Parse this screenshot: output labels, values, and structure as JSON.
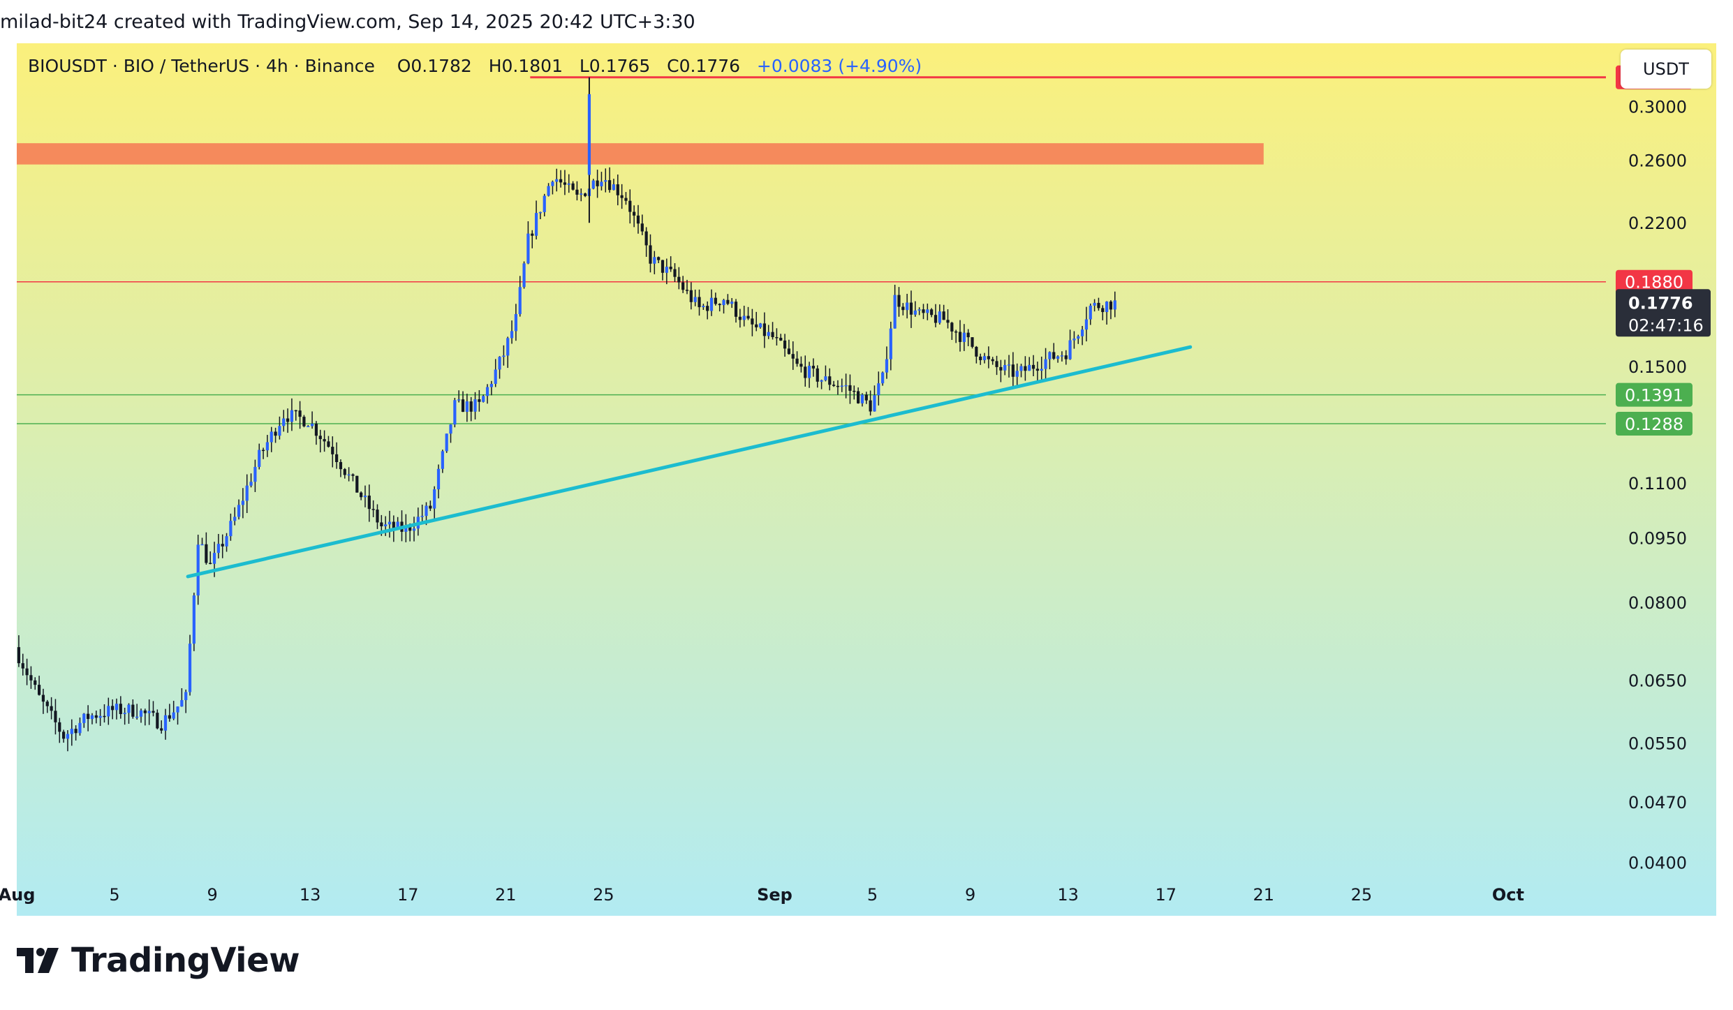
{
  "attribution": "milad-bit24 created with TradingView.com, Sep 14, 2025 20:42 UTC+3:30",
  "symbol_line": {
    "pair": "BIOUSDT",
    "name": "BIO / TetherUS",
    "interval": "4h",
    "exchange": "Binance",
    "open": "O0.1782",
    "high": "H0.1801",
    "low": "L0.1765",
    "close": "C0.1776",
    "change": "+0.0083 (+4.90%)"
  },
  "currency_button": "USDT",
  "brand": "TradingView",
  "colors": {
    "bg_top": "#fbf07c",
    "bg_bottom": "#b2ebf2",
    "candle": "#2962ff",
    "wick": "#131722",
    "trendline": "#1cbccf",
    "resistance": "#f23645",
    "support": "#4caf50",
    "zone": "#f58a5c"
  },
  "chart_data": {
    "type": "candlestick",
    "title": "BIOUSDT · BIO / TetherUS · 4h · Binance",
    "y_scale": "log",
    "ylim": [
      0.0347,
      0.355
    ],
    "x_range": [
      "2025-08-01",
      "2025-10-05"
    ],
    "y_ticks": [
      "0.3000",
      "0.2600",
      "0.2200",
      "0.1500",
      "0.1100",
      "0.0950",
      "0.0800",
      "0.0650",
      "0.0550",
      "0.0470",
      "0.0400"
    ],
    "x_ticks": [
      {
        "label": "Aug",
        "date": "2025-08-01",
        "bold": true
      },
      {
        "label": "5",
        "date": "2025-08-05"
      },
      {
        "label": "9",
        "date": "2025-08-09"
      },
      {
        "label": "13",
        "date": "2025-08-13"
      },
      {
        "label": "17",
        "date": "2025-08-17"
      },
      {
        "label": "21",
        "date": "2025-08-21"
      },
      {
        "label": "25",
        "date": "2025-08-25"
      },
      {
        "label": "Sep",
        "date": "2025-09-01",
        "bold": true
      },
      {
        "label": "5",
        "date": "2025-09-05"
      },
      {
        "label": "9",
        "date": "2025-09-09"
      },
      {
        "label": "13",
        "date": "2025-09-13"
      },
      {
        "label": "17",
        "date": "2025-09-17"
      },
      {
        "label": "21",
        "date": "2025-09-21"
      },
      {
        "label": "25",
        "date": "2025-09-25"
      },
      {
        "label": "Oct",
        "date": "2025-10-01",
        "bold": true
      }
    ],
    "price_lines": [
      {
        "label": "0.3242",
        "price": 0.3242,
        "color": "#f23645",
        "from": "2025-08-22"
      },
      {
        "label": "0.1880",
        "price": 0.188,
        "color": "#f23645",
        "from": "2025-08-01"
      },
      {
        "label": "0.1391",
        "price": 0.1391,
        "color": "#4caf50",
        "from": "2025-08-01"
      },
      {
        "label": "0.1288",
        "price": 0.1288,
        "color": "#4caf50",
        "from": "2025-08-01"
      }
    ],
    "zone": {
      "from": "2025-08-01",
      "to": "2025-09-21",
      "low": 0.257,
      "high": 0.272,
      "color": "#f58a5c"
    },
    "trendline": {
      "start": {
        "date": "2025-08-08",
        "price": 0.0857
      },
      "end": {
        "date": "2025-09-18",
        "price": 0.158
      },
      "color": "#1cbccf"
    },
    "last_price": {
      "value": "0.1776",
      "countdown": "02:47:16"
    },
    "anchors": [
      [
        "2025-08-01",
        0.071
      ],
      [
        "2025-08-02",
        0.062
      ],
      [
        "2025-08-03",
        0.056
      ],
      [
        "2025-08-04",
        0.059
      ],
      [
        "2025-08-05",
        0.06
      ],
      [
        "2025-08-06",
        0.06
      ],
      [
        "2025-08-07",
        0.058
      ],
      [
        "2025-08-08",
        0.062
      ],
      [
        "2025-08-08 12:00",
        0.095
      ],
      [
        "2025-08-09",
        0.088
      ],
      [
        "2025-08-10",
        0.1
      ],
      [
        "2025-08-11",
        0.118
      ],
      [
        "2025-08-12",
        0.132
      ],
      [
        "2025-08-13",
        0.13
      ],
      [
        "2025-08-14",
        0.12
      ],
      [
        "2025-08-15",
        0.108
      ],
      [
        "2025-08-16",
        0.098
      ],
      [
        "2025-08-17",
        0.097
      ],
      [
        "2025-08-18",
        0.103
      ],
      [
        "2025-08-19",
        0.135
      ],
      [
        "2025-08-20",
        0.135
      ],
      [
        "2025-08-21",
        0.155
      ],
      [
        "2025-08-21 12:00",
        0.17
      ],
      [
        "2025-08-22",
        0.21
      ],
      [
        "2025-08-23",
        0.25
      ],
      [
        "2025-08-24",
        0.235
      ],
      [
        "2025-08-25",
        0.25
      ],
      [
        "2025-08-26",
        0.235
      ],
      [
        "2025-08-27",
        0.2
      ],
      [
        "2025-08-28",
        0.19
      ],
      [
        "2025-08-29",
        0.175
      ],
      [
        "2025-08-30",
        0.18
      ],
      [
        "2025-08-31",
        0.168
      ],
      [
        "2025-09-01",
        0.162
      ],
      [
        "2025-09-02",
        0.15
      ],
      [
        "2025-09-03",
        0.145
      ],
      [
        "2025-09-04",
        0.142
      ],
      [
        "2025-09-05",
        0.135
      ],
      [
        "2025-09-05 12:00",
        0.145
      ],
      [
        "2025-09-06",
        0.18
      ],
      [
        "2025-09-07",
        0.172
      ],
      [
        "2025-09-08",
        0.17
      ],
      [
        "2025-09-09",
        0.16
      ],
      [
        "2025-09-10",
        0.15
      ],
      [
        "2025-09-11",
        0.147
      ],
      [
        "2025-09-12",
        0.152
      ],
      [
        "2025-09-13",
        0.156
      ],
      [
        "2025-09-13 12:00",
        0.165
      ],
      [
        "2025-09-14",
        0.176
      ],
      [
        "2025-09-14 20:42",
        0.1776
      ]
    ]
  }
}
